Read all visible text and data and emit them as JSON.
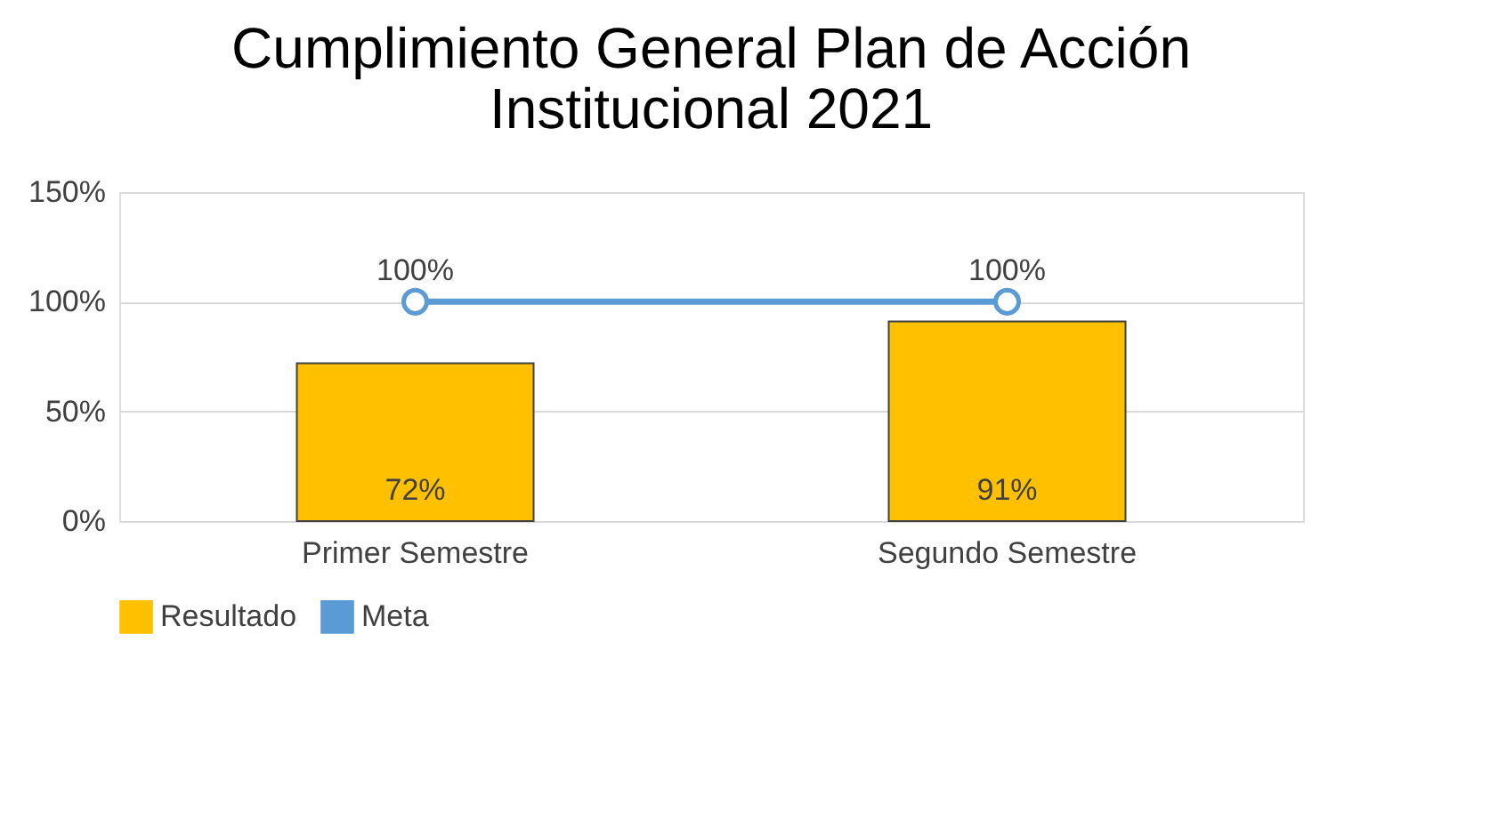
{
  "chart_data": {
    "type": "bar",
    "title": "Cumplimiento General Plan de Acción Institucional 2021",
    "categories": [
      "Primer Semestre",
      "Segundo Semestre"
    ],
    "series": [
      {
        "name": "Resultado",
        "color": "#ffc000",
        "values": [
          72,
          91
        ],
        "value_labels": [
          "72%",
          "91%"
        ]
      },
      {
        "name": "Meta",
        "type": "line",
        "color": "#5b9bd5",
        "values": [
          100,
          100
        ],
        "value_labels": [
          "100%",
          "100%"
        ]
      }
    ],
    "ylim": [
      0,
      150
    ],
    "yticks": [
      {
        "value": 0,
        "label": "0%"
      },
      {
        "value": 50,
        "label": "50%"
      },
      {
        "value": 100,
        "label": "100%"
      },
      {
        "value": 150,
        "label": "150%"
      }
    ],
    "grid": "y",
    "legend": "bottom",
    "marker": "circle",
    "line_style": "solid"
  }
}
